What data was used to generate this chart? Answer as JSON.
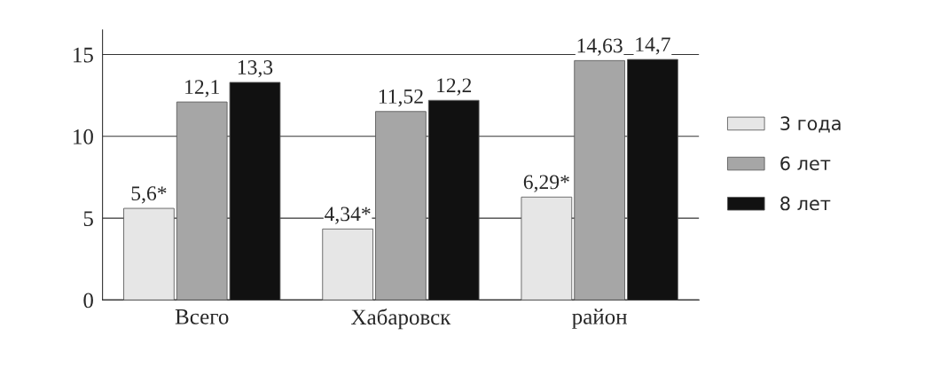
{
  "chart_data": {
    "type": "bar",
    "categories": [
      "Всего",
      "Хабаровск",
      "район"
    ],
    "series": [
      {
        "name": "3 года",
        "color": "#e6e6e6",
        "values": [
          5.6,
          4.34,
          6.29
        ],
        "value_labels": [
          "5,6*",
          "4,34*",
          "6,29*"
        ]
      },
      {
        "name": "6 лет",
        "color": "#a6a6a6",
        "values": [
          12.1,
          11.52,
          14.63
        ],
        "value_labels": [
          "12,1",
          "11,52",
          "14,63"
        ]
      },
      {
        "name": "8 лет",
        "color": "#111111",
        "values": [
          13.3,
          12.2,
          14.7
        ],
        "value_labels": [
          "13,3",
          "12,2",
          "14,7"
        ]
      }
    ],
    "ylim": [
      0,
      16.5
    ],
    "yticks": [
      0,
      5,
      10,
      15
    ],
    "grid": "y",
    "legend": "right"
  }
}
